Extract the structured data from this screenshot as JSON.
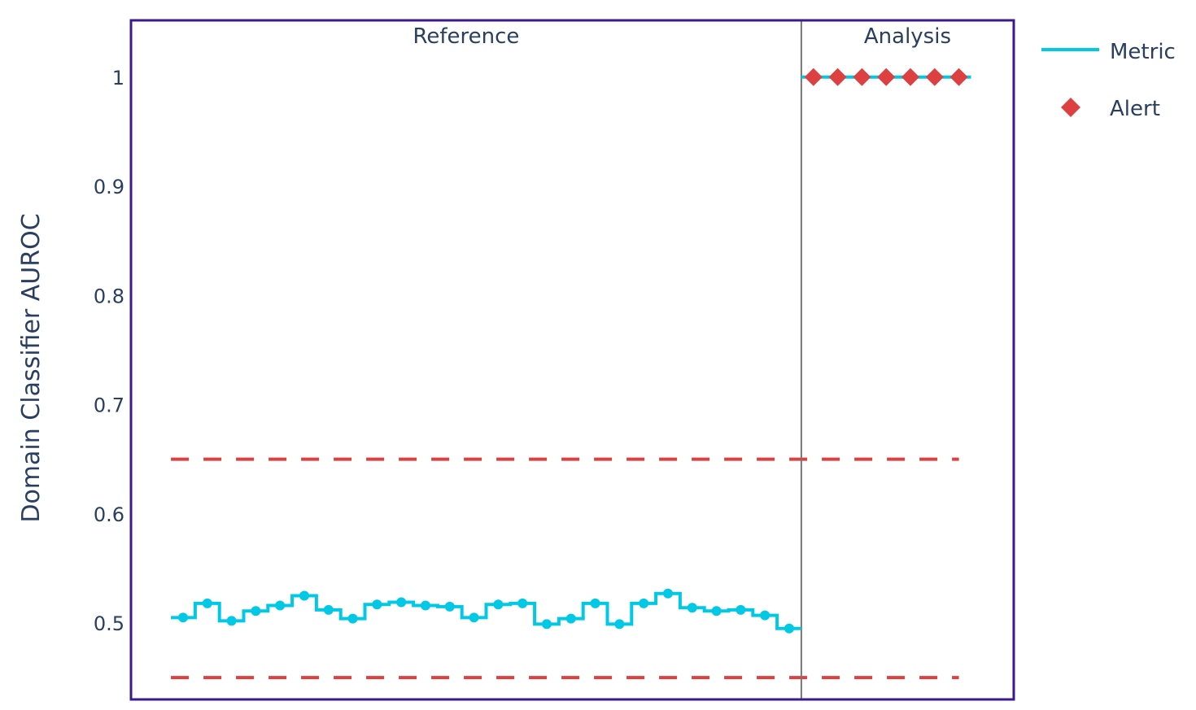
{
  "chart_data": {
    "type": "line",
    "ylabel": "Domain Classifier AUROC",
    "ylim": [
      0.43,
      1.052
    ],
    "yticks": [
      0.5,
      0.6,
      0.7,
      0.8,
      0.9,
      1
    ],
    "ytick_labels": [
      "0.5",
      "0.6",
      "0.7",
      "0.8",
      "0.9",
      "1"
    ],
    "grid": false,
    "legend_position": "top-right",
    "periods": [
      {
        "name": "Reference",
        "start_index": 0,
        "end_index": 25
      },
      {
        "name": "Analysis",
        "start_index": 26,
        "end_index": 32
      }
    ],
    "series": [
      {
        "name": "Metric",
        "style": "step",
        "color": "#00c8e5",
        "values": [
          0.505,
          0.518,
          0.502,
          0.511,
          0.516,
          0.525,
          0.512,
          0.504,
          0.517,
          0.519,
          0.516,
          0.515,
          0.505,
          0.517,
          0.518,
          0.499,
          0.504,
          0.518,
          0.499,
          0.518,
          0.527,
          0.514,
          0.511,
          0.512,
          0.507,
          0.495,
          1,
          1,
          1,
          1,
          1,
          1,
          1
        ]
      }
    ],
    "alerts": {
      "name": "Alert",
      "color": "#dd4040",
      "indices": [
        26,
        27,
        28,
        29,
        30,
        31,
        32
      ],
      "values": [
        1,
        1,
        1,
        1,
        1,
        1,
        1
      ]
    },
    "thresholds": {
      "color": "#dd4040",
      "upper": 0.65,
      "lower": 0.45
    }
  },
  "legend": {
    "metric_label": "Metric",
    "alert_label": "Alert"
  },
  "colors": {
    "frame": "#3d1a8c",
    "divider": "#777777",
    "text": "#2a3f5f"
  }
}
